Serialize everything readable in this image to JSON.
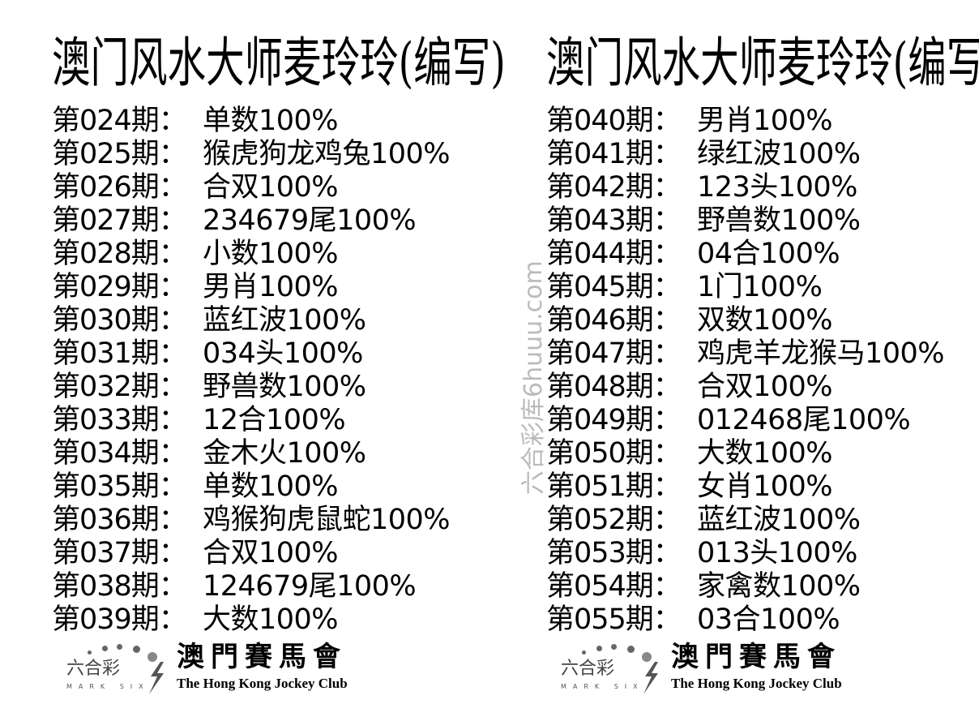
{
  "left": {
    "title": "澳门风水大师麦玲玲(编写)",
    "rows": [
      {
        "label": "第024期：",
        "value": "单数100%"
      },
      {
        "label": "第025期：",
        "value": "猴虎狗龙鸡兔100%"
      },
      {
        "label": "第026期：",
        "value": "合双100%"
      },
      {
        "label": "第027期：",
        "value": "234679尾100%"
      },
      {
        "label": "第028期：",
        "value": "小数100%"
      },
      {
        "label": "第029期：",
        "value": "男肖100%"
      },
      {
        "label": "第030期：",
        "value": "蓝红波100%"
      },
      {
        "label": "第031期：",
        "value": "034头100%"
      },
      {
        "label": "第032期：",
        "value": "野兽数100%"
      },
      {
        "label": "第033期：",
        "value": "12合100%"
      },
      {
        "label": "第034期：",
        "value": "金木火100%"
      },
      {
        "label": "第035期：",
        "value": "单数100%"
      },
      {
        "label": "第036期：",
        "value": "鸡猴狗虎鼠蛇100%"
      },
      {
        "label": "第037期：",
        "value": "合双100%"
      },
      {
        "label": "第038期：",
        "value": "124679尾100%"
      },
      {
        "label": "第039期：",
        "value": "大数100%"
      }
    ],
    "logo": {
      "marksix_cn": "六合彩",
      "marksix_en": "MARK SIX",
      "hkjc_cn": "澳門賽馬會",
      "hkjc_en": "The Hong Kong Jockey Club"
    }
  },
  "right": {
    "title": "澳门风水大师麦玲玲(编写)",
    "rows": [
      {
        "label": "第040期：",
        "value": "男肖100%"
      },
      {
        "label": "第041期：",
        "value": "绿红波100%"
      },
      {
        "label": "第042期：",
        "value": "123头100%"
      },
      {
        "label": "第043期：",
        "value": "野兽数100%"
      },
      {
        "label": "第044期：",
        "value": "04合100%"
      },
      {
        "label": "第045期：",
        "value": "1门100%"
      },
      {
        "label": "第046期：",
        "value": "双数100%"
      },
      {
        "label": "第047期：",
        "value": "鸡虎羊龙猴马100%"
      },
      {
        "label": "第048期：",
        "value": "合双100%"
      },
      {
        "label": "第049期：",
        "value": "012468尾100%"
      },
      {
        "label": "第050期：",
        "value": "大数100%"
      },
      {
        "label": "第051期：",
        "value": "女肖100%"
      },
      {
        "label": "第052期：",
        "value": "蓝红波100%"
      },
      {
        "label": "第053期：",
        "value": "013头100%"
      },
      {
        "label": "第054期：",
        "value": "家禽数100%"
      },
      {
        "label": "第055期：",
        "value": "03合100%"
      }
    ],
    "logo": {
      "marksix_cn": "六合彩",
      "marksix_en": "MARK SIX",
      "hkjc_cn": "澳門賽馬會",
      "hkjc_en": "The Hong Kong Jockey Club"
    }
  },
  "watermark": "六合彩库6huuu.com"
}
